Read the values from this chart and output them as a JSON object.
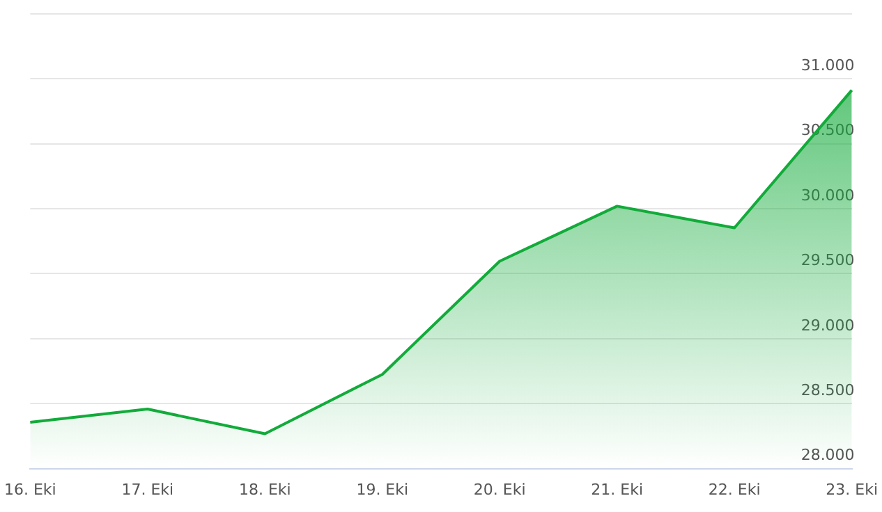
{
  "chart_data": {
    "type": "area",
    "categories": [
      "16. Eki",
      "17. Eki",
      "18. Eki",
      "19. Eki",
      "20. Eki",
      "21. Eki",
      "22. Eki",
      "23. Eki"
    ],
    "series": [
      {
        "color": "#12ab3a",
        "values": [
          28357,
          28458,
          28268,
          28725,
          29596,
          30020,
          29853,
          30913
        ]
      }
    ],
    "ylim": [
      28000,
      31500
    ],
    "yticks": [
      {
        "value": 28000,
        "label": "28.000"
      },
      {
        "value": 28500,
        "label": "28.500"
      },
      {
        "value": 29000,
        "label": "29.000"
      },
      {
        "value": 29500,
        "label": "29.500"
      },
      {
        "value": 30000,
        "label": "30.000"
      },
      {
        "value": 30500,
        "label": "30.500"
      },
      {
        "value": 31000,
        "label": "31.000"
      },
      {
        "value": 31500,
        "label": null
      }
    ],
    "grid": "y",
    "legend": false,
    "marker": "none",
    "line_style": "solid"
  }
}
